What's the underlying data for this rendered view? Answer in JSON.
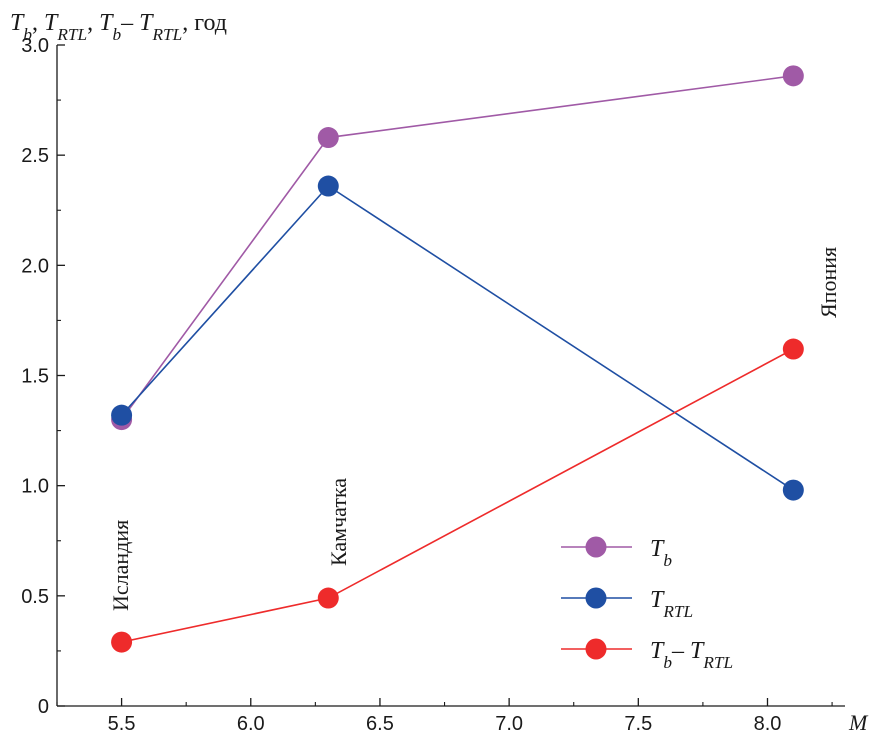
{
  "chart_data": {
    "type": "line",
    "ylabel_parts": [
      {
        "text": "T",
        "style": "italic"
      },
      {
        "text": "b",
        "style": "italic-sub"
      },
      {
        "text": ", ",
        "style": "normal"
      },
      {
        "text": "T",
        "style": "italic"
      },
      {
        "text": "RTL",
        "style": "italic-sub"
      },
      {
        "text": ", ",
        "style": "normal"
      },
      {
        "text": "T",
        "style": "italic"
      },
      {
        "text": "b",
        "style": "italic-sub"
      },
      {
        "text": "– ",
        "style": "normal"
      },
      {
        "text": "T",
        "style": "italic"
      },
      {
        "text": "RTL",
        "style": "italic-sub"
      },
      {
        "text": ", год",
        "style": "normal"
      }
    ],
    "xlabel": "M",
    "xlim": [
      5.25,
      8.3
    ],
    "ylim": [
      0,
      3.0
    ],
    "xticks": [
      "5.5",
      "6.0",
      "6.5",
      "7.0",
      "7.5",
      "8.0"
    ],
    "yticks": [
      "0",
      "0.5",
      "1.0",
      "1.5",
      "2.0",
      "2.5",
      "3.0"
    ],
    "grid": false,
    "legend_position": "bottom-right",
    "x": [
      5.5,
      6.3,
      8.1
    ],
    "annotations": [
      "Исландия",
      "Камчатка",
      "Япония"
    ],
    "series": [
      {
        "color": "#a05aa6",
        "values": [
          1.3,
          2.58,
          2.86
        ],
        "legend": [
          {
            "text": "T",
            "style": "italic"
          },
          {
            "text": "b",
            "style": "italic-sub"
          }
        ]
      },
      {
        "color": "#1f4fa3",
        "values": [
          1.32,
          2.36,
          0.98
        ],
        "legend": [
          {
            "text": "T",
            "style": "italic"
          },
          {
            "text": "RTL",
            "style": "italic-sub"
          }
        ]
      },
      {
        "color": "#ee2b2b",
        "values": [
          0.29,
          0.49,
          1.62
        ],
        "legend": [
          {
            "text": "T",
            "style": "italic"
          },
          {
            "text": "b",
            "style": "italic-sub"
          },
          {
            "text": "– ",
            "style": "normal"
          },
          {
            "text": "T",
            "style": "italic"
          },
          {
            "text": "RTL",
            "style": "italic-sub"
          }
        ]
      }
    ]
  }
}
